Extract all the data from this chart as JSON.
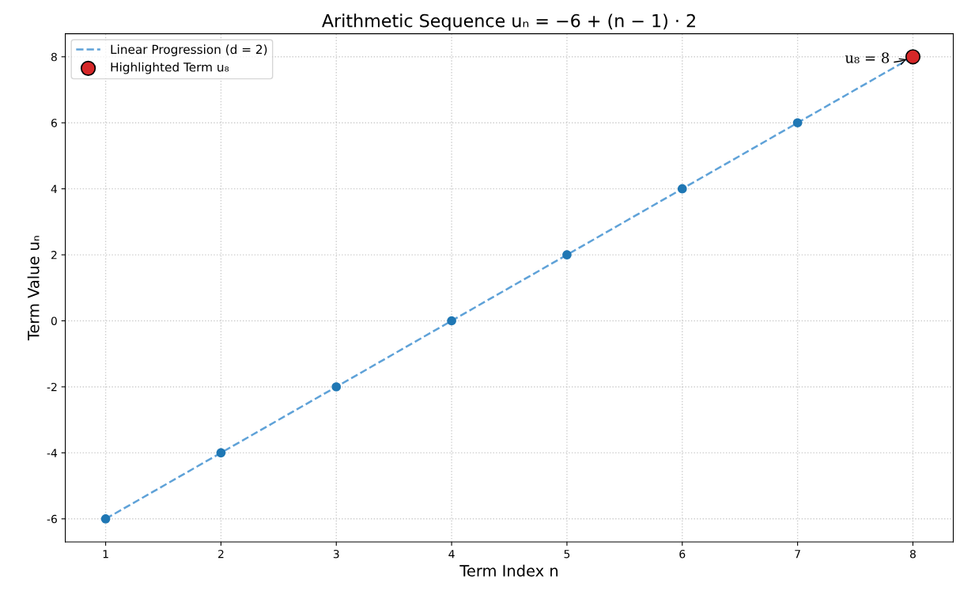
{
  "chart_data": {
    "type": "line",
    "title": "Arithmetic Sequence uₙ = −6 + (n − 1) · 2",
    "xlabel": "Term Index n",
    "ylabel": "Term Value uₙ",
    "x": [
      1,
      2,
      3,
      4,
      5,
      6,
      7,
      8
    ],
    "series": [
      {
        "name": "Linear Progression (d = 2)",
        "color": "#5fa2d8",
        "line_style": "dashed",
        "marker": "none",
        "values": [
          -6,
          -4,
          -2,
          0,
          2,
          4,
          6,
          8
        ]
      },
      {
        "type": "scatter",
        "color": "#1f77b4",
        "marker": "circle",
        "values": [
          -6,
          -4,
          -2,
          0,
          2,
          4,
          6,
          null
        ]
      },
      {
        "name": "Highlighted Term u₈",
        "type": "scatter",
        "color": "#d62728",
        "marker": "circle",
        "x": [
          8
        ],
        "values": [
          8
        ]
      }
    ],
    "annotations": [
      {
        "text": "u₈ = 8",
        "x": 8,
        "y": 8
      }
    ],
    "xlim": [
      0.65,
      8.35
    ],
    "xticks": [
      1,
      2,
      3,
      4,
      5,
      6,
      7,
      8
    ],
    "ylim": [
      -6.7,
      8.7
    ],
    "yticks": [
      -6,
      -4,
      -2,
      0,
      2,
      4,
      6,
      8
    ],
    "grid": true,
    "legend": "top left"
  }
}
